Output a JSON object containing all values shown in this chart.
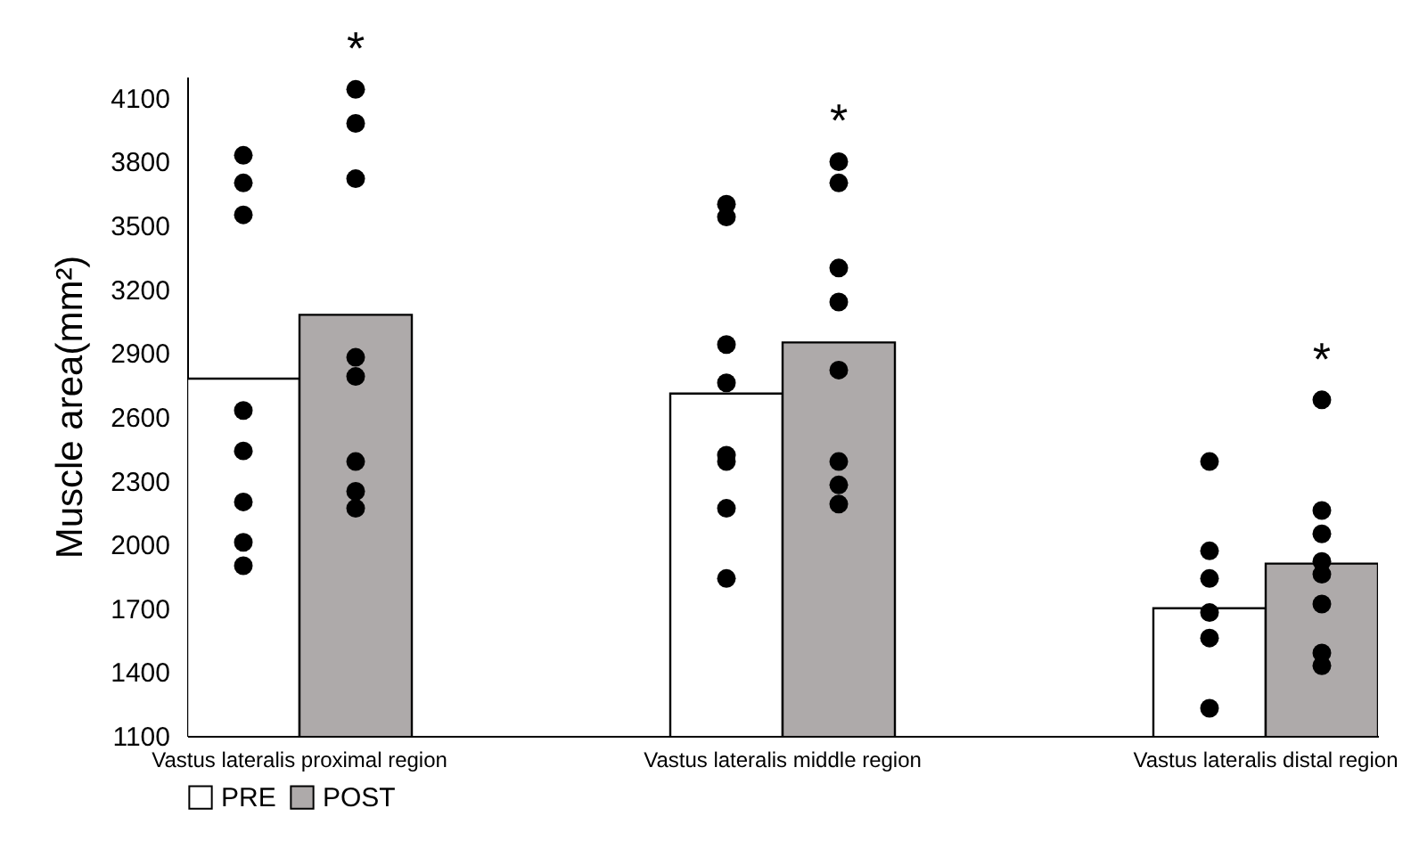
{
  "chart_data": {
    "type": "bar",
    "ylabel": "Muscle area(mm²)",
    "categories": [
      "Vastus lateralis proximal region",
      "Vastus lateralis middle region",
      "Vastus lateralis distal region"
    ],
    "series": [
      {
        "name": "PRE",
        "color": "#ffffff",
        "values": [
          2780,
          2710,
          1700
        ]
      },
      {
        "name": "POST",
        "color": "#aeaaaa",
        "values": [
          3080,
          2950,
          1910
        ]
      },
      {
        "type": "scatter",
        "color": "#000000",
        "x": [
          "Vastus lateralis proximal region",
          "Vastus lateralis proximal region",
          "Vastus lateralis proximal region",
          "Vastus lateralis proximal region",
          "Vastus lateralis proximal region",
          "Vastus lateralis proximal region",
          "Vastus lateralis proximal region",
          "Vastus lateralis proximal region",
          "Vastus lateralis middle region",
          "Vastus lateralis middle region",
          "Vastus lateralis middle region",
          "Vastus lateralis middle region",
          "Vastus lateralis middle region",
          "Vastus lateralis middle region",
          "Vastus lateralis middle region",
          "Vastus lateralis middle region",
          "Vastus lateralis distal region",
          "Vastus lateralis distal region",
          "Vastus lateralis distal region",
          "Vastus lateralis distal region",
          "Vastus lateralis distal region",
          "Vastus lateralis distal region"
        ],
        "values": [
          3830,
          3700,
          3550,
          2630,
          2440,
          2200,
          2010,
          1900,
          3600,
          3540,
          2940,
          2760,
          2420,
          2390,
          2170,
          1840,
          2390,
          1970,
          1840,
          1680,
          1560,
          1230
        ]
      },
      {
        "type": "scatter",
        "color": "#000000",
        "x": [
          "Vastus lateralis proximal region",
          "Vastus lateralis proximal region",
          "Vastus lateralis proximal region",
          "Vastus lateralis proximal region",
          "Vastus lateralis proximal region",
          "Vastus lateralis proximal region",
          "Vastus lateralis proximal region",
          "Vastus lateralis proximal region",
          "Vastus lateralis middle region",
          "Vastus lateralis middle region",
          "Vastus lateralis middle region",
          "Vastus lateralis middle region",
          "Vastus lateralis middle region",
          "Vastus lateralis middle region",
          "Vastus lateralis middle region",
          "Vastus lateralis middle region",
          "Vastus lateralis distal region",
          "Vastus lateralis distal region",
          "Vastus lateralis distal region",
          "Vastus lateralis distal region",
          "Vastus lateralis distal region",
          "Vastus lateralis distal region",
          "Vastus lateralis distal region",
          "Vastus lateralis distal region"
        ],
        "values": [
          4140,
          3980,
          3720,
          2880,
          2790,
          2390,
          2250,
          2170,
          3800,
          3700,
          3300,
          3140,
          2820,
          2390,
          2280,
          2190,
          2680,
          2160,
          2050,
          1920,
          1860,
          1720,
          1490,
          1430
        ]
      }
    ],
    "annotations": [
      "*",
      "*",
      "*"
    ],
    "ylim": [
      1100,
      4200
    ],
    "yticks": [
      1100,
      1400,
      1700,
      2000,
      2300,
      2600,
      2900,
      3200,
      3500,
      3800,
      4100
    ],
    "grid": false,
    "legend": "bottom",
    "marker": "circle"
  }
}
